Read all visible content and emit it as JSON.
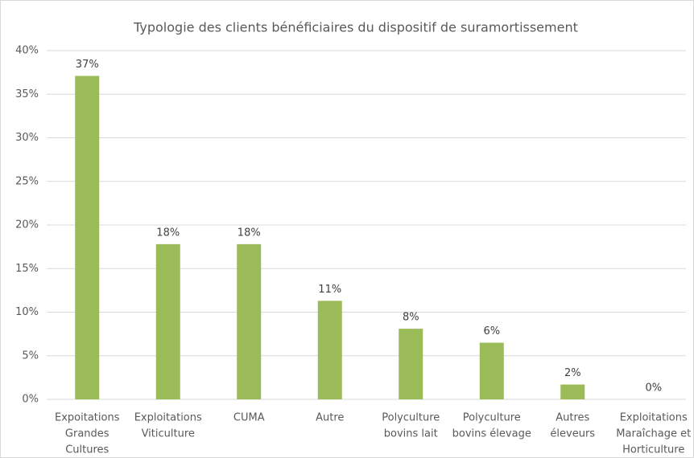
{
  "chart_data": {
    "type": "bar",
    "title": "Typologie des clients bénéficiaires du dispositif de suramortissement",
    "categories": [
      [
        "Expoitations",
        "Grandes",
        "Cultures"
      ],
      [
        "Exploitations",
        "Viticulture"
      ],
      [
        "CUMA"
      ],
      [
        "Autre"
      ],
      [
        "Polyculture",
        "bovins lait"
      ],
      [
        "Polyculture",
        "bovins élevage"
      ],
      [
        "Autres",
        "éleveurs"
      ],
      [
        "Exploitations",
        "Maraîchage et",
        "Horticulture"
      ]
    ],
    "values": [
      37.1,
      17.8,
      17.8,
      11.3,
      8.1,
      6.5,
      1.7,
      0
    ],
    "value_labels": [
      "37%",
      "18%",
      "18%",
      "11%",
      "8%",
      "6%",
      "2%",
      "0%"
    ],
    "color": "#9bbb59",
    "ylim": [
      0,
      40
    ],
    "yticks": [
      {
        "value": 0,
        "label": "0%"
      },
      {
        "value": 5,
        "label": "5%"
      },
      {
        "value": 10,
        "label": "10%"
      },
      {
        "value": 15,
        "label": "15%"
      },
      {
        "value": 20,
        "label": "20%"
      },
      {
        "value": 25,
        "label": "25%"
      },
      {
        "value": 30,
        "label": "30%"
      },
      {
        "value": 35,
        "label": "35%"
      },
      {
        "value": 40,
        "label": "40%"
      }
    ],
    "grid": true
  }
}
